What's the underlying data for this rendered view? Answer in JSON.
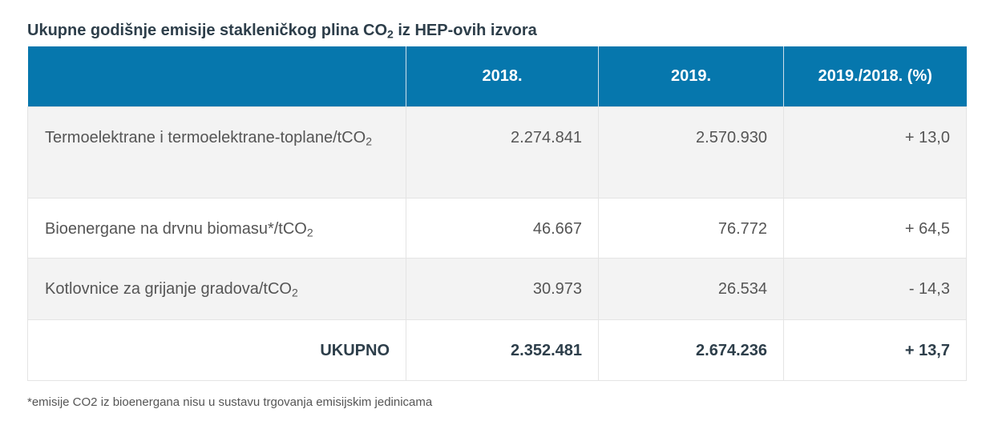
{
  "title": {
    "prefix": "Ukupne godišnje emisije stakleničkog plina CO",
    "sub": "2",
    "suffix": " iz HEP-ovih izvora"
  },
  "colors": {
    "header_bg": "#0677ad",
    "row_shade": "#f3f3f3",
    "title": "#2d3e4a"
  },
  "table": {
    "headers": [
      "",
      "2018.",
      "2019.",
      "2019./2018. (%)"
    ],
    "rows": [
      {
        "label": "Termoelektrane i termoelektrane-toplane/tCO",
        "label_sub": "2",
        "y2018": "2.274.841",
        "y2019": "2.570.930",
        "change": "+ 13,0"
      },
      {
        "label": "Bioenergane na drvnu biomasu*/tCO",
        "label_sub": "2",
        "y2018": "46.667",
        "y2019": "76.772",
        "change": "+ 64,5"
      },
      {
        "label": "Kotlovnice za grijanje gradova/tCO",
        "label_sub": "2",
        "y2018": "30.973",
        "y2019": "26.534",
        "change": "- 14,3"
      }
    ],
    "total": {
      "label": "UKUPNO",
      "y2018": "2.352.481",
      "y2019": "2.674.236",
      "change": "+ 13,7"
    }
  },
  "footnote": "*emisije CO2 iz bioenergana nisu u sustavu trgovanja emisijskim jedinicama"
}
